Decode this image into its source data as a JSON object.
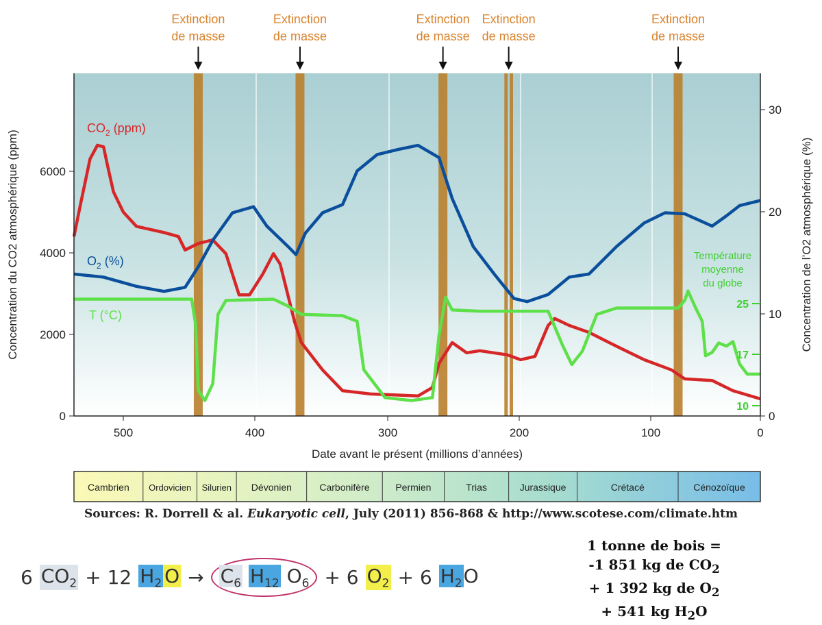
{
  "chart_data": {
    "type": "line",
    "xlabel": "Date avant le présent (millions d’années)",
    "ylabel_left": "Concentration du CO2 atmosphérique (ppm)",
    "ylabel_right": "Concentration de l’O2 atmosphérique (%)",
    "xlim": [
      540,
      0
    ],
    "ylim_left": [
      0,
      8400
    ],
    "ylim_right": [
      0,
      33.5
    ],
    "x_ticks": [
      500,
      400,
      300,
      200,
      100,
      0
    ],
    "y_left_ticks": [
      0,
      2000,
      4000,
      6000
    ],
    "y_right_ticks": [
      0,
      10,
      20,
      30
    ],
    "temp_ticks": [
      10,
      17,
      25
    ],
    "temp_axis_label": [
      "Température",
      "moyenne",
      "du globe"
    ],
    "series": [
      {
        "name": "CO2 (ppm)",
        "label_main": "CO",
        "label_sub": "2",
        "label_tail": " (ppm)",
        "color": "#d62728",
        "axis": "left",
        "x": [
          540,
          535,
          527,
          521,
          516,
          513,
          508,
          500,
          490,
          469,
          458,
          453,
          443,
          432,
          422,
          412,
          404,
          394,
          386,
          381,
          370,
          365,
          349,
          334,
          313,
          297,
          277,
          266,
          261,
          251,
          240,
          230,
          209,
          199,
          188,
          178,
          173,
          162,
          147,
          126,
          105,
          81,
          69,
          44,
          25,
          0
        ],
        "y": [
          4400,
          5150,
          6300,
          6640,
          6600,
          6170,
          5500,
          5000,
          4650,
          4500,
          4400,
          4070,
          4230,
          4320,
          3980,
          2970,
          2970,
          3480,
          3980,
          3730,
          2300,
          1800,
          1130,
          620,
          540,
          520,
          490,
          700,
          1290,
          1800,
          1550,
          1600,
          1500,
          1380,
          1460,
          2220,
          2390,
          2220,
          2050,
          1710,
          1380,
          1130,
          910,
          870,
          620,
          420
        ]
      },
      {
        "name": "O2 (%)",
        "label_main": "O",
        "label_sub": "2",
        "label_tail": " (%)",
        "color": "#0b4f9c",
        "axis": "right",
        "x": [
          540,
          516,
          490,
          469,
          453,
          443,
          432,
          417,
          401,
          391,
          375,
          369,
          362,
          349,
          334,
          323,
          308,
          292,
          277,
          261,
          251,
          235,
          219,
          204,
          194,
          178,
          162,
          147,
          126,
          105,
          87,
          69,
          44,
          31,
          19,
          0
        ],
        "y": [
          13.9,
          13.6,
          12.7,
          12.2,
          12.6,
          14.6,
          17.2,
          19.9,
          20.5,
          18.6,
          16.6,
          15.8,
          17.9,
          19.9,
          20.7,
          24.0,
          25.6,
          26.1,
          26.5,
          25.3,
          21.3,
          16.6,
          13.9,
          11.5,
          11.2,
          11.9,
          13.6,
          13.9,
          16.6,
          18.9,
          19.9,
          19.8,
          18.6,
          19.6,
          20.6,
          21.1
        ]
      },
      {
        "name": "T (°C)",
        "label_main": "T (°C)",
        "color": "#5ee04a",
        "axis": "temp",
        "x": [
          540,
          448,
          445,
          443,
          438,
          432,
          428,
          422,
          386,
          375,
          365,
          334,
          323,
          318,
          302,
          282,
          266,
          261,
          256,
          251,
          230,
          178,
          167,
          160,
          152,
          141,
          126,
          75,
          69,
          66,
          59,
          53,
          50,
          44,
          38,
          31,
          25,
          19,
          12,
          0
        ],
        "y": [
          25.7,
          25.7,
          21.7,
          12.1,
          10.7,
          13,
          23.3,
          25.5,
          25.7,
          24.6,
          23.3,
          23.1,
          22.2,
          14.9,
          11.1,
          10.7,
          11.1,
          20,
          26,
          24,
          23.8,
          23.8,
          18.4,
          15.6,
          17.5,
          23.3,
          24.3,
          24.3,
          25.5,
          27,
          24.3,
          22.2,
          16.8,
          17.3,
          18.8,
          18.3,
          19,
          15.7,
          14.3,
          14.3
        ]
      }
    ],
    "extinctions": [
      {
        "ma": [
          443
        ],
        "label": [
          "Extinction",
          "de masse"
        ]
      },
      {
        "ma": [
          366
        ],
        "label": [
          "Extinction",
          "de masse"
        ]
      },
      {
        "ma": [
          258
        ],
        "label": [
          "Extinction",
          "de masse"
        ]
      },
      {
        "ma": [
          210,
          206
        ],
        "label": [
          "Extinction",
          "de masse"
        ]
      },
      {
        "ma": [
          75
        ],
        "label": [
          "Extinction",
          "de masse"
        ]
      }
    ],
    "periods": [
      {
        "name": "Cambrien",
        "from": 540,
        "to": 485
      },
      {
        "name": "Ordovicien",
        "from": 485,
        "to": 444
      },
      {
        "name": "Silurien",
        "from": 444,
        "to": 414
      },
      {
        "name": "Dévonien",
        "from": 414,
        "to": 361
      },
      {
        "name": "Carbonifère",
        "from": 361,
        "to": 304
      },
      {
        "name": "Permien",
        "from": 304,
        "to": 257
      },
      {
        "name": "Trias",
        "from": 257,
        "to": 208
      },
      {
        "name": "Jurassique",
        "from": 208,
        "to": 156
      },
      {
        "name": "Crétacé",
        "from": 156,
        "to": 75
      },
      {
        "name": "Cénozoïque",
        "from": 75,
        "to": 0
      }
    ]
  },
  "sources": {
    "prefix": "Sources: R. Dorrell & al. ",
    "journal": "Eukaryotic cell",
    "suffix": ", July (2011) 856-868 & http://www.scotese.com/climate.htm"
  },
  "equation": {
    "c1": "6",
    "co2": "CO",
    "co2s": "2",
    "plus1": "+ 12",
    "h2o": "H",
    "h2os": "2",
    "o": "O",
    "arrow": "→",
    "c6": "C",
    "c6s": "6",
    "h12": "H",
    "h12s": "12",
    "o6": "O",
    "o6s": "6",
    "plus2": "+ 6",
    "o2": "O",
    "o2s": "2",
    "plus3": "+ 6",
    "h2o2": "H",
    "h2o2s": "2",
    "o_2": "O"
  },
  "wood": {
    "l1": "1 tonne de bois =",
    "l2": "-1 851 kg de CO",
    "l2s": "2",
    "l3": "+ 1 392 kg de O",
    "l3s": "2",
    "l4a": "+ 541 kg H",
    "l4s": "2",
    "l4b": "O"
  }
}
